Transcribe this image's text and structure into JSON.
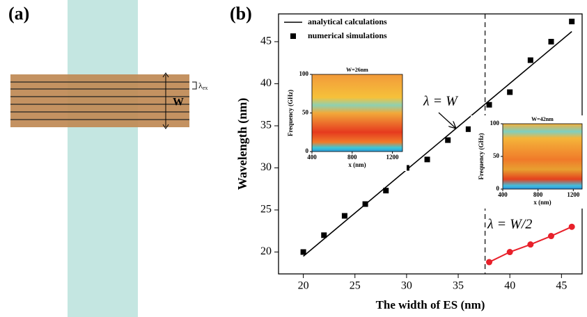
{
  "panel_a": {
    "label": "(a)",
    "width_label": "W",
    "period_symbol": "λ",
    "period_subscript": "ex"
  },
  "chart_data": {
    "type": "line",
    "panel_label": "(b)",
    "x_label": "The width of ES (nm)",
    "y_label": "Wavelength (nm)",
    "xlim": [
      17.6,
      47
    ],
    "ylim": [
      17.4,
      48.3
    ],
    "xticks": [
      20,
      25,
      30,
      35,
      40,
      45
    ],
    "yticks": [
      20,
      25,
      30,
      35,
      40,
      45
    ],
    "legend": "upper left",
    "vline": 37.6,
    "series": [
      {
        "name": "analytical calculations",
        "style": "line",
        "color": "#000000",
        "x": [
          20,
          46
        ],
        "values": [
          19.5,
          46.2
        ]
      },
      {
        "name": "numerical simulations",
        "style": "squares",
        "color": "#000000",
        "x": [
          20,
          22,
          24,
          26,
          28,
          30,
          32,
          34,
          36,
          38,
          40,
          42,
          44,
          46
        ],
        "values": [
          20.0,
          22.0,
          24.3,
          25.7,
          27.3,
          30.0,
          31.0,
          33.3,
          34.6,
          37.5,
          39.0,
          42.8,
          45.0,
          47.4
        ]
      },
      {
        "style": "line-circles",
        "color": "#e8202a",
        "x": [
          38,
          40,
          42,
          44,
          46
        ],
        "values": [
          18.8,
          20.0,
          20.9,
          21.9,
          23.0
        ]
      }
    ],
    "annotations": [
      "λ = W",
      "λ = W/2"
    ],
    "insets": [
      {
        "title": "W=26nm",
        "x_label": "x (nm)",
        "y_label": "Frequency (GHz)",
        "xlim": [
          400,
          1300
        ],
        "ylim": [
          0,
          100
        ],
        "xticks": [
          400,
          800,
          1200
        ],
        "yticks": [
          0,
          50,
          100
        ]
      },
      {
        "title": "W=42nm",
        "x_label": "x (nm)",
        "y_label": "Frequency (GHz)",
        "xlim": [
          400,
          1300
        ],
        "ylim": [
          0,
          100
        ],
        "xticks": [
          400,
          800,
          1200
        ],
        "yticks": [
          0,
          50,
          100
        ]
      }
    ]
  }
}
